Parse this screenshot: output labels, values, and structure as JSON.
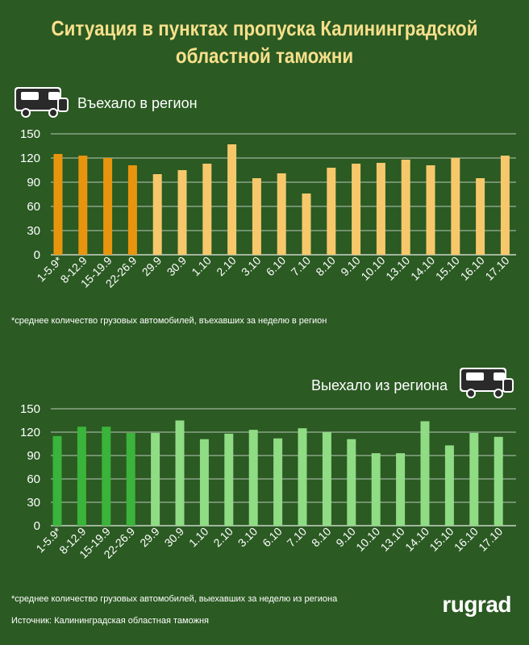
{
  "title": "Ситуация в пунктах пропуска Калининградской областной таможни",
  "title_line1": "Ситуация в пунктах пропуска Калининградской",
  "title_line2": "областной таможни",
  "colors": {
    "background": "#2b5a23",
    "title": "#f7e08b",
    "in_weekly": "#e8950d",
    "in_daily": "#f6c86b",
    "out_weekly": "#3ab43a",
    "out_daily": "#8fdc84"
  },
  "icons": [
    "truck-icon",
    "truck-icon"
  ],
  "chart_data": [
    {
      "type": "bar",
      "title": "Въехало в регион",
      "categories": [
        "1-5.9*",
        "8-12.9",
        "15-19.9",
        "22-26.9",
        "29.9",
        "30.9",
        "1.10",
        "2.10",
        "3.10",
        "6.10",
        "7.10",
        "8.10",
        "9.10",
        "10.10",
        "13.10",
        "14.10",
        "15.10",
        "16.10",
        "17.10"
      ],
      "values": [
        125,
        123,
        120,
        111,
        100,
        105,
        113,
        137,
        95,
        101,
        76,
        108,
        113,
        114,
        118,
        111,
        120,
        95,
        123
      ],
      "yticks": [
        0,
        30,
        60,
        90,
        120,
        150
      ],
      "ylim": [
        0,
        150
      ],
      "grid": true,
      "footnote": "*среднее количество грузовых автомобилей, въехавших за неделю в регион"
    },
    {
      "type": "bar",
      "title": "Выехало из региона",
      "categories": [
        "1-5.9*",
        "8-12.9",
        "15-19.9",
        "22-26.9",
        "29.9",
        "30.9",
        "1.10",
        "2.10",
        "3.10",
        "6.10",
        "7.10",
        "8.10",
        "9.10",
        "10.10",
        "13.10",
        "14.10",
        "15.10",
        "16.10",
        "17.10"
      ],
      "values": [
        115,
        127,
        127,
        119,
        119,
        135,
        111,
        118,
        123,
        112,
        125,
        120,
        111,
        93,
        93,
        134,
        103,
        119,
        114
      ],
      "yticks": [
        0,
        30,
        60,
        90,
        120,
        150
      ],
      "ylim": [
        0,
        150
      ],
      "grid": true,
      "footnote": "*среднее количество грузовых автомобилей, выехавших за неделю из региона"
    }
  ],
  "source": "Источник: Калининградская областная таможня",
  "logo": "rugrad"
}
